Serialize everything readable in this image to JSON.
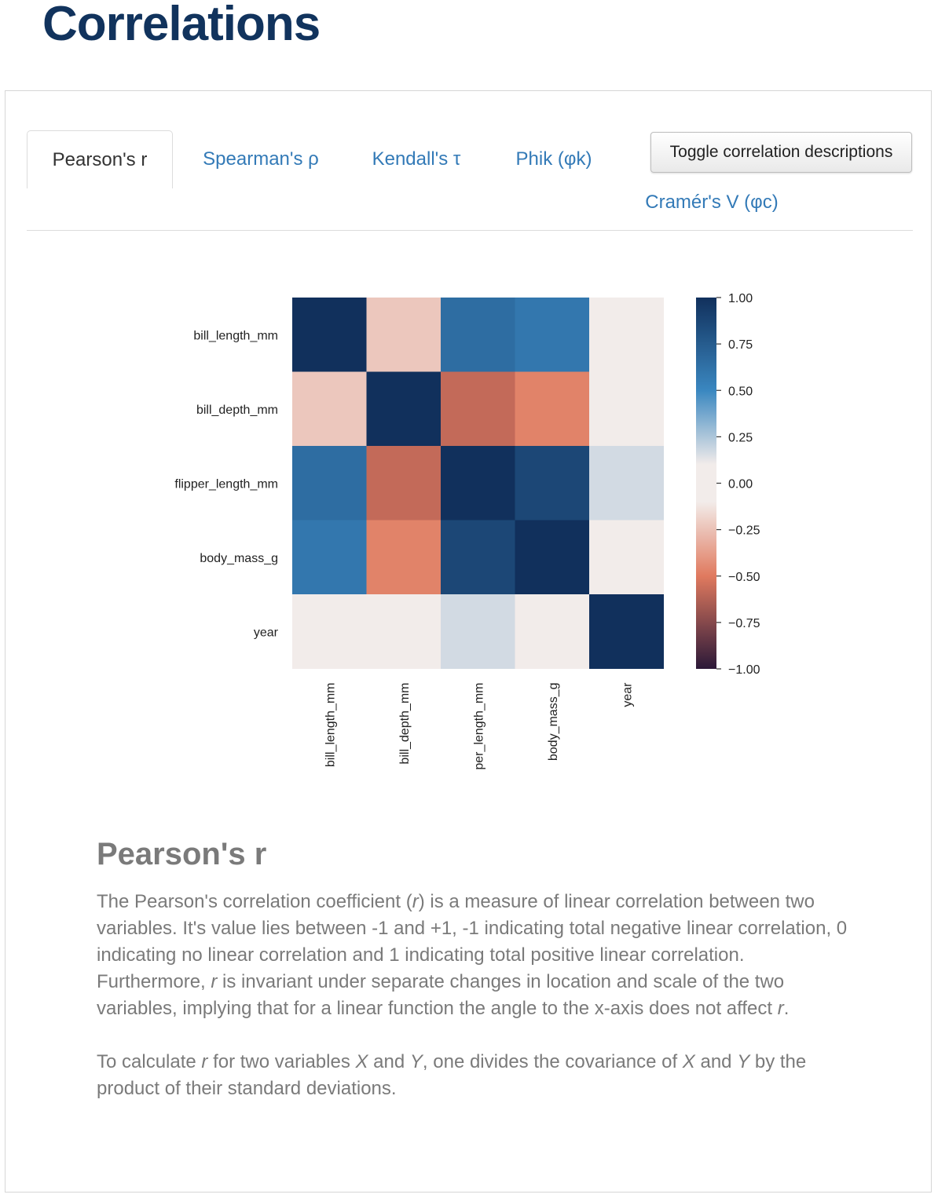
{
  "page": {
    "title": "Correlations"
  },
  "tabs": [
    {
      "label": "Pearson's r",
      "active": true
    },
    {
      "label": "Spearman's ρ",
      "active": false
    },
    {
      "label": "Kendall's τ",
      "active": false
    },
    {
      "label": "Phik (φk)",
      "active": false
    },
    {
      "label": "Cramér's V (φc)",
      "active": false
    }
  ],
  "toggle_button": {
    "label": "Toggle correlation descriptions"
  },
  "chart_data": {
    "type": "heatmap",
    "rows": [
      "bill_length_mm",
      "bill_depth_mm",
      "flipper_length_mm",
      "body_mass_g",
      "year"
    ],
    "columns": [
      "bill_length_mm",
      "bill_depth_mm",
      "per_length_mm",
      "body_mass_g",
      "year"
    ],
    "values": [
      [
        1.0,
        -0.23,
        0.65,
        0.59,
        0.05
      ],
      [
        -0.23,
        1.0,
        -0.58,
        -0.47,
        -0.06
      ],
      [
        0.65,
        -0.58,
        1.0,
        0.87,
        0.17
      ],
      [
        0.59,
        -0.47,
        0.87,
        1.0,
        0.04
      ],
      [
        0.05,
        -0.06,
        0.17,
        0.04,
        1.0
      ]
    ],
    "colorbar": {
      "range": [
        -1.0,
        1.0
      ],
      "ticks": [
        "1.00",
        "0.75",
        "0.50",
        "0.25",
        "0.00",
        "−0.25",
        "−0.50",
        "−0.75",
        "−1.00"
      ],
      "colors": {
        "strong_negative": "#2b1838",
        "negative": "#e07a5f",
        "neutral": "#f2ecea",
        "positive": "#3a87c0",
        "strong_positive": "#11305c"
      }
    }
  },
  "description": {
    "heading": "Pearson's r",
    "paragraph1": "The Pearson's correlation coefficient (r) is a measure of linear correlation between two variables. It's value lies between -1 and +1, -1 indicating total negative linear correlation, 0 indicating no linear correlation and 1 indicating total positive linear correlation. Furthermore, r is invariant under separate changes in location and scale of the two variables, implying that for a linear function the angle to the x-axis does not affect r.",
    "paragraph2": "To calculate r for two variables X and Y, one divides the covariance of X and Y by the product of their standard deviations."
  }
}
